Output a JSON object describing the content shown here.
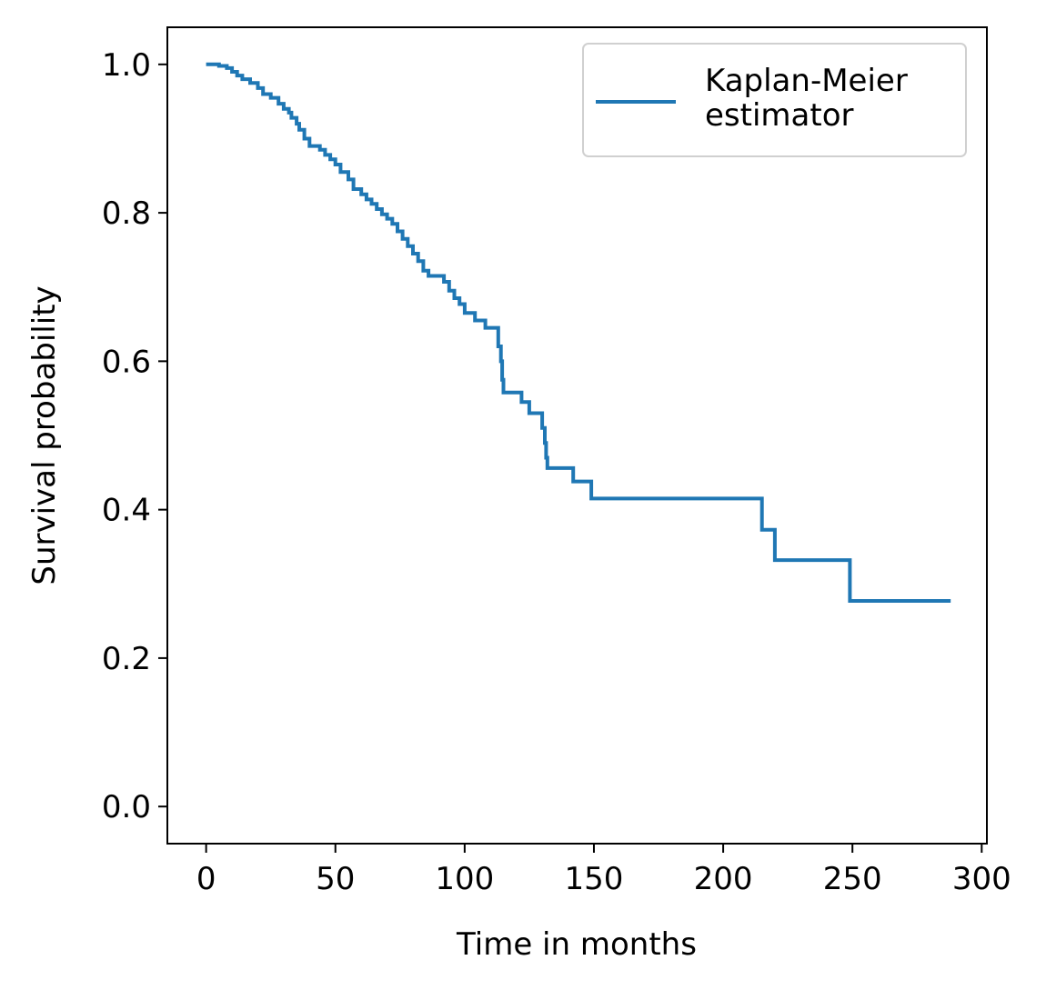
{
  "chart_data": {
    "type": "line",
    "line_style": "step-post",
    "xlabel": "Time in months",
    "ylabel": "Survival probability",
    "xlim": [
      -15,
      302
    ],
    "ylim": [
      -0.05,
      1.05
    ],
    "xticks": [
      0,
      50,
      100,
      150,
      200,
      250,
      300
    ],
    "xtick_labels": [
      "0",
      "50",
      "100",
      "150",
      "200",
      "250",
      "300"
    ],
    "yticks": [
      0.0,
      0.2,
      0.4,
      0.6,
      0.8,
      1.0
    ],
    "ytick_labels": [
      "0.0",
      "0.2",
      "0.4",
      "0.6",
      "0.8",
      "1.0"
    ],
    "grid": false,
    "legend_position": "top-right",
    "series": [
      {
        "name": "Kaplan-Meier\nestimator",
        "color": "#1f77b4",
        "x": [
          0,
          5,
          8,
          10,
          12,
          14,
          17,
          20,
          22,
          25,
          28,
          30,
          32,
          33,
          35,
          36,
          38,
          40,
          44,
          46,
          48,
          50,
          52,
          55,
          57,
          60,
          62,
          64,
          66,
          68,
          70,
          72,
          74,
          76,
          78,
          80,
          82,
          84,
          86,
          88,
          92,
          94,
          96,
          98,
          100,
          104,
          108,
          113,
          114,
          114.5,
          115,
          116,
          122,
          125,
          130,
          131,
          131.5,
          132,
          142,
          149,
          215,
          220,
          249,
          288
        ],
        "y": [
          1.0,
          0.998,
          0.995,
          0.99,
          0.985,
          0.98,
          0.975,
          0.968,
          0.96,
          0.955,
          0.947,
          0.94,
          0.935,
          0.928,
          0.92,
          0.912,
          0.9,
          0.89,
          0.885,
          0.878,
          0.872,
          0.865,
          0.855,
          0.845,
          0.832,
          0.825,
          0.818,
          0.812,
          0.805,
          0.798,
          0.792,
          0.785,
          0.775,
          0.765,
          0.755,
          0.745,
          0.735,
          0.722,
          0.715,
          0.715,
          0.707,
          0.695,
          0.685,
          0.677,
          0.665,
          0.655,
          0.645,
          0.62,
          0.6,
          0.575,
          0.558,
          0.558,
          0.545,
          0.53,
          0.51,
          0.49,
          0.47,
          0.456,
          0.438,
          0.415,
          0.373,
          0.332,
          0.277,
          0.277
        ]
      }
    ]
  }
}
